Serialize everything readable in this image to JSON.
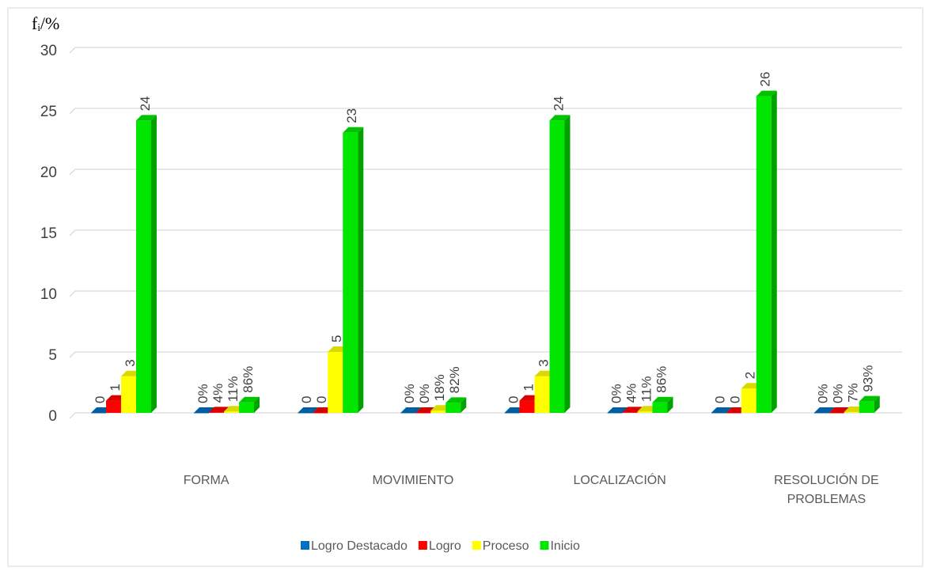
{
  "chart_data": {
    "type": "bar3d",
    "y_label": "fᵢ/%",
    "categories": [
      "FORMA",
      "MOVIMIENTO",
      "LOCALIZACIÓN",
      "RESOLUCIÓN DE PROBLEMAS"
    ],
    "series": [
      {
        "name": "Logro Destacado",
        "color": "#0070c0",
        "values": [
          0,
          0,
          0,
          0
        ],
        "percent_values": [
          0,
          0,
          0,
          0
        ],
        "percent_labels": [
          "0%",
          "0%",
          "0%",
          "0%"
        ]
      },
      {
        "name": "Logro",
        "color": "#ff0000",
        "values": [
          1,
          0,
          1,
          0
        ],
        "percent_values": [
          0.04,
          0,
          0.04,
          0
        ],
        "percent_labels": [
          "4%",
          "0%",
          "4%",
          "0%"
        ]
      },
      {
        "name": "Proceso",
        "color": "#ffff00",
        "values": [
          3,
          5,
          3,
          2
        ],
        "percent_values": [
          0.11,
          0.18,
          0.11,
          0.07
        ],
        "percent_labels": [
          "11%",
          "18%",
          "11%",
          "7%"
        ]
      },
      {
        "name": "Inicio",
        "color": "#00e600",
        "values": [
          24,
          23,
          24,
          26
        ],
        "percent_values": [
          0.86,
          0.82,
          0.86,
          0.93
        ],
        "percent_labels": [
          "86%",
          "82%",
          "86%",
          "93%"
        ]
      }
    ],
    "ylim": [
      0,
      30
    ],
    "yticks": [
      0,
      5,
      10,
      15,
      20,
      25,
      30
    ],
    "grid": true,
    "legend": "bottom"
  }
}
